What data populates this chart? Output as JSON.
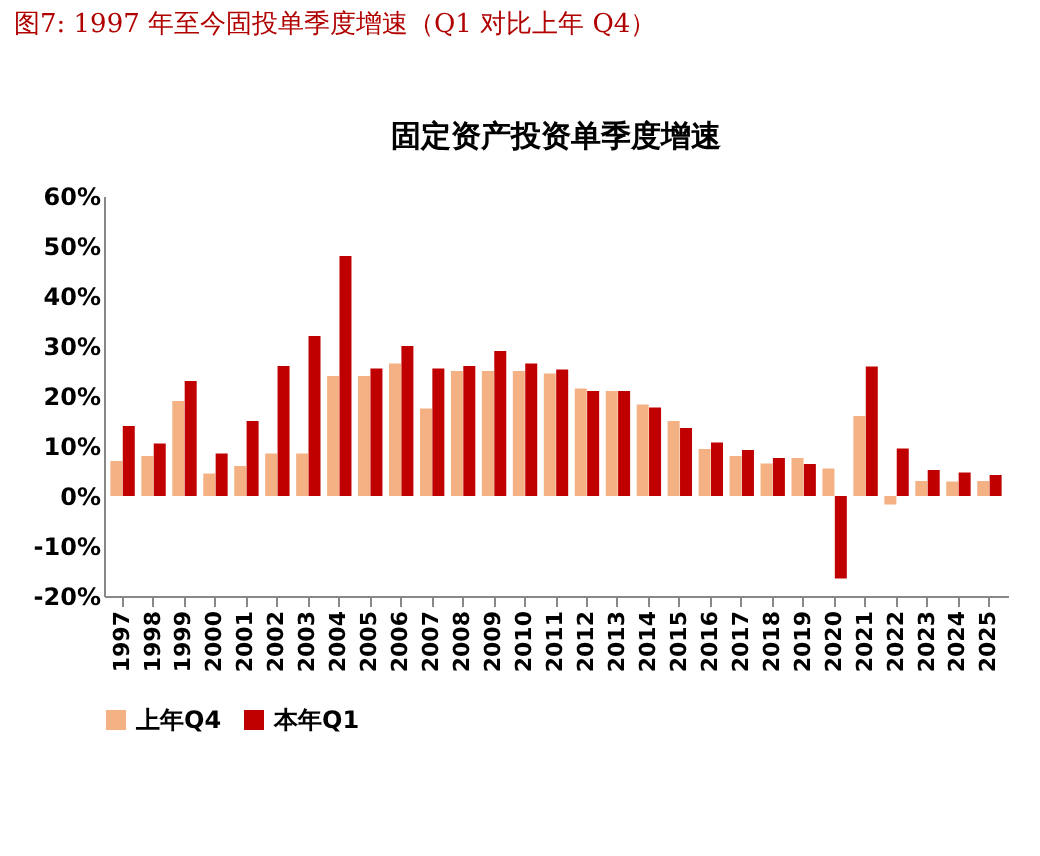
{
  "chart_data": {
    "type": "bar",
    "title": "固定资产投资单季度增速",
    "annotations": [
      "图7:   1997 年至今固投单季度增速（Q1 对比上年 Q4）"
    ],
    "categories": [
      "1997",
      "1998",
      "1999",
      "2000",
      "2001",
      "2002",
      "2003",
      "2004",
      "2005",
      "2006",
      "2007",
      "2008",
      "2009",
      "2010",
      "2011",
      "2012",
      "2013",
      "2014",
      "2015",
      "2016",
      "2017",
      "2018",
      "2019",
      "2020",
      "2021",
      "2022",
      "2023",
      "2024",
      "2025"
    ],
    "series": [
      {
        "name": "上年Q4",
        "color": "#f4b183",
        "values": [
          7,
          8,
          19,
          4.5,
          6,
          8.5,
          8.5,
          24,
          24,
          26.5,
          17.5,
          25,
          25,
          25,
          24.5,
          21.5,
          21,
          18.3,
          15,
          9.4,
          8,
          6.5,
          7.6,
          5.5,
          16,
          -1.7,
          3,
          2.9,
          3
        ]
      },
      {
        "name": "本年Q1",
        "color": "#c00000",
        "values": [
          14,
          10.5,
          23,
          8.5,
          15,
          26,
          32,
          48,
          25.5,
          30,
          25.5,
          26,
          29,
          26.5,
          25.3,
          21,
          21,
          17.7,
          13.6,
          10.7,
          9.2,
          7.6,
          6.4,
          -16.5,
          25.9,
          9.5,
          5.2,
          4.7,
          4.2
        ]
      }
    ],
    "ylim": [
      -20,
      60
    ],
    "yticks": [
      {
        "value": -20,
        "label": "-20%"
      },
      {
        "value": -10,
        "label": "-10%"
      },
      {
        "value": 0,
        "label": "0%"
      },
      {
        "value": 10,
        "label": "10%"
      },
      {
        "value": 20,
        "label": "20%"
      },
      {
        "value": 30,
        "label": "30%"
      },
      {
        "value": 40,
        "label": "40%"
      },
      {
        "value": 50,
        "label": "50%"
      },
      {
        "value": 60,
        "label": "60%"
      }
    ],
    "grid": false,
    "legend": "bottom"
  }
}
